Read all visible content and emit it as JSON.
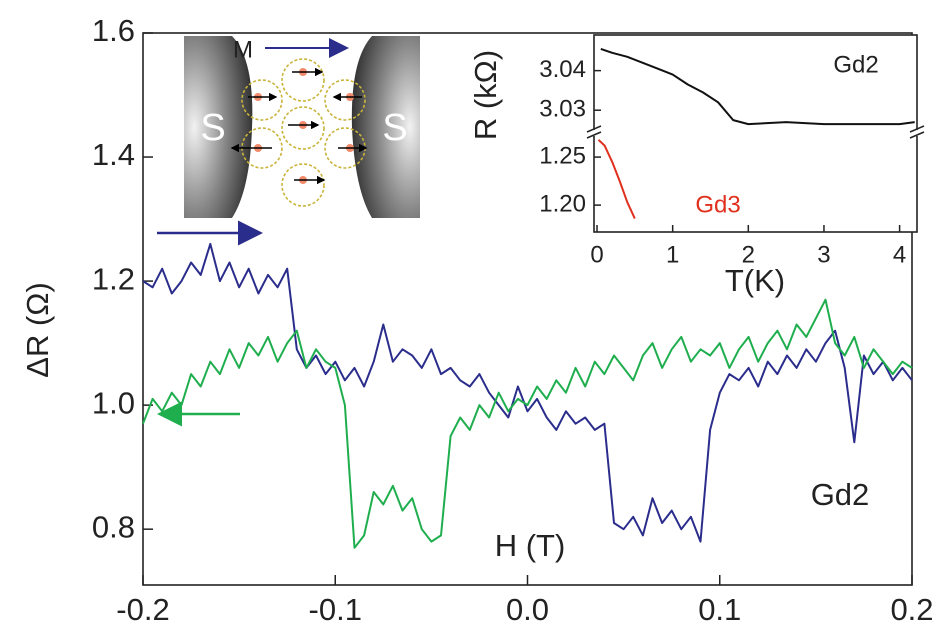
{
  "chart_data": [
    {
      "type": "line",
      "xlabel": "H (T)",
      "ylabel": "ΔR (Ω)",
      "annotation": "Gd2",
      "xlim": [
        -0.2,
        0.2
      ],
      "ylim": [
        0.71,
        1.6
      ],
      "xticks": [
        -0.2,
        -0.1,
        {
          "value": 0,
          "label": "0.0"
        },
        0.1,
        0.2
      ],
      "yticks": [
        0.8,
        {
          "value": 1,
          "label": "1.0"
        },
        1.2,
        1.4,
        1.6
      ],
      "x": [
        -0.2,
        -0.195,
        -0.19,
        -0.185,
        -0.18,
        -0.175,
        -0.17,
        -0.165,
        -0.16,
        -0.155,
        -0.15,
        -0.145,
        -0.14,
        -0.135,
        -0.13,
        -0.125,
        -0.12,
        -0.115,
        -0.11,
        -0.105,
        -0.1,
        -0.095,
        -0.09,
        -0.085,
        -0.08,
        -0.075,
        -0.07,
        -0.065,
        -0.06,
        -0.055,
        -0.05,
        -0.045,
        -0.04,
        -0.035,
        -0.03,
        -0.025,
        -0.02,
        -0.015,
        -0.01,
        -0.005,
        0,
        0.005,
        0.01,
        0.015,
        0.02,
        0.025,
        0.03,
        0.035,
        0.04,
        0.045,
        0.05,
        0.055,
        0.06,
        0.065,
        0.07,
        0.075,
        0.08,
        0.085,
        0.09,
        0.095,
        0.1,
        0.105,
        0.11,
        0.115,
        0.12,
        0.125,
        0.13,
        0.135,
        0.14,
        0.145,
        0.15,
        0.155,
        0.16,
        0.165,
        0.17,
        0.175,
        0.18,
        0.185,
        0.19,
        0.195,
        0.2
      ],
      "series": [
        {
          "color": "#2b2d8c",
          "values": [
            1.2,
            1.19,
            1.22,
            1.18,
            1.2,
            1.23,
            1.21,
            1.26,
            1.2,
            1.23,
            1.19,
            1.22,
            1.18,
            1.21,
            1.19,
            1.22,
            1.09,
            1.06,
            1.08,
            1.05,
            1.07,
            1.04,
            1.06,
            1.03,
            1.07,
            1.13,
            1.07,
            1.09,
            1.08,
            1.06,
            1.09,
            1.05,
            1.06,
            1.04,
            1.03,
            1.05,
            1.02,
            1.0,
            0.98,
            1.03,
            0.99,
            1.01,
            0.98,
            0.96,
            0.99,
            0.97,
            0.98,
            0.96,
            0.97,
            0.81,
            0.8,
            0.82,
            0.79,
            0.85,
            0.81,
            0.83,
            0.8,
            0.82,
            0.78,
            0.96,
            1.02,
            1.05,
            1.04,
            1.06,
            1.03,
            1.07,
            1.05,
            1.08,
            1.06,
            1.09,
            1.07,
            1.1,
            1.12,
            1.06,
            0.94,
            1.08,
            1.05,
            1.07,
            1.04,
            1.06,
            1.04
          ]
        },
        {
          "color": "#1fae4e",
          "values": [
            0.97,
            1.01,
            0.99,
            1.02,
            1.0,
            1.05,
            1.03,
            1.07,
            1.05,
            1.09,
            1.06,
            1.1,
            1.08,
            1.11,
            1.07,
            1.1,
            1.12,
            1.06,
            1.09,
            1.07,
            1.06,
            1.0,
            0.77,
            0.79,
            0.86,
            0.84,
            0.87,
            0.83,
            0.85,
            0.8,
            0.78,
            0.79,
            0.95,
            0.98,
            0.96,
            1.0,
            0.98,
            1.02,
            0.99,
            1.01,
            1.0,
            1.03,
            1.01,
            1.04,
            1.02,
            1.06,
            1.03,
            1.07,
            1.05,
            1.08,
            1.06,
            1.04,
            1.08,
            1.1,
            1.06,
            1.09,
            1.11,
            1.07,
            1.09,
            1.08,
            1.1,
            1.06,
            1.09,
            1.11,
            1.07,
            1.1,
            1.12,
            1.09,
            1.13,
            1.11,
            1.14,
            1.17,
            1.1,
            1.08,
            1.11,
            1.06,
            1.09,
            1.07,
            1.05,
            1.07,
            1.06
          ]
        }
      ]
    },
    {
      "type": "line",
      "xlabel": "T(K)",
      "ylabel": "R (kΩ)",
      "xlim": [
        -0.04,
        4.23
      ],
      "xticks": [
        0,
        1,
        2,
        3,
        4
      ],
      "ylim": [
        1.172,
        1.273
      ],
      "yticks": [
        {
          "value": 1.2,
          "label": "1.20"
        },
        1.25
      ],
      "y2lim": [
        3.025,
        3.049
      ],
      "y2ticks": [
        3.03,
        3.04
      ],
      "series": [
        {
          "name": "Gd2",
          "color": "#111111",
          "axis": "y2",
          "x": [
            0.05,
            0.2,
            0.4,
            0.6,
            0.8,
            1.0,
            1.2,
            1.4,
            1.6,
            1.8,
            2.0,
            2.5,
            3.0,
            3.5,
            4.0,
            4.2
          ],
          "values": [
            3.0455,
            3.0445,
            3.0435,
            3.042,
            3.0405,
            3.039,
            3.0365,
            3.0345,
            3.032,
            3.0275,
            3.0265,
            3.027,
            3.0265,
            3.0265,
            3.0265,
            3.027
          ]
        },
        {
          "name": "Gd3",
          "color": "#e0301e",
          "x": [
            0.02,
            0.1,
            0.2,
            0.3,
            0.4,
            0.5
          ],
          "values": [
            1.268,
            1.262,
            1.245,
            1.225,
            1.203,
            1.186
          ]
        }
      ]
    }
  ],
  "schematic": {
    "magnetization_label": "M",
    "left_electrode": "S",
    "right_electrode": "S"
  }
}
